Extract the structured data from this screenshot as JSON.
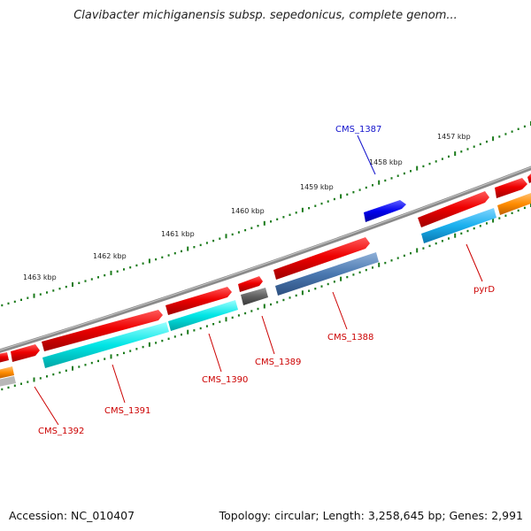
{
  "title": "Clavibacter michiganensis subsp. sepedonicus, complete genom...",
  "footer": {
    "accession": "Accession: NC_010407",
    "summary": "Topology: circular; Length: 3,258,645 bp; Genes: 2,991"
  },
  "scale_labels": [
    "1457 kbp",
    "1458 kbp",
    "1459 kbp",
    "1460 kbp",
    "1461 kbp",
    "1462 kbp",
    "1463 kbp"
  ],
  "gene_labels": [
    {
      "name": "CMS_1387",
      "color": "#1111cc"
    },
    {
      "name": "pyrD",
      "color": "#cc0000"
    },
    {
      "name": "CMS_1388",
      "color": "#cc0000"
    },
    {
      "name": "CMS_1389",
      "color": "#cc0000"
    },
    {
      "name": "CMS_1390",
      "color": "#cc0000"
    },
    {
      "name": "CMS_1391",
      "color": "#cc0000"
    },
    {
      "name": "CMS_1392",
      "color": "#cc0000"
    }
  ],
  "colors": {
    "backbone": "#8a8a8a",
    "cds": "#ee0000",
    "gene_cyan": "#00e5e5",
    "gene_lightblue": "#1ab0ee",
    "gene_steelblue": "#4a78b0",
    "gene_darkgray": "#606060",
    "gene_orange": "#ff8c00",
    "gene_blue": "#0000ee",
    "tick_green": "#1a7a1a"
  }
}
